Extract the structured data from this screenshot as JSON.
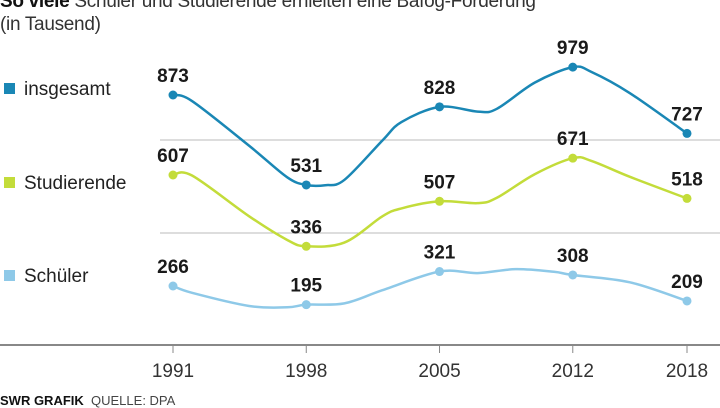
{
  "title_bold": "So viele",
  "title_rest": " Schüler und Studierende erhielten eine Bafög-Förderung",
  "subtitle": "(in Tausend)",
  "footer": {
    "brand": "SWR GRAFIK",
    "source": "QUELLE: DPA"
  },
  "chart_data": {
    "type": "line",
    "title": "So viele Schüler und Studierende erhielten eine Bafög-Förderung",
    "subtitle": "(in Tausend)",
    "x_ticks": [
      1991,
      1998,
      2005,
      2012,
      2018
    ],
    "legend_placement": "left",
    "grid": "horizontal separators",
    "series": [
      {
        "name": "insgesamt",
        "color": "#1a87b5",
        "labeled": {
          "1991": 873,
          "1998": 531,
          "2005": 828,
          "2012": 979,
          "2018": 727
        },
        "points": [
          [
            1991,
            873
          ],
          [
            1992,
            850
          ],
          [
            1995,
            680
          ],
          [
            1997,
            560
          ],
          [
            1998,
            531
          ],
          [
            1999,
            530
          ],
          [
            2000,
            550
          ],
          [
            2002,
            700
          ],
          [
            2003,
            770
          ],
          [
            2005,
            828
          ],
          [
            2007,
            810
          ],
          [
            2008,
            820
          ],
          [
            2010,
            920
          ],
          [
            2012,
            979
          ],
          [
            2013,
            960
          ],
          [
            2015,
            880
          ],
          [
            2018,
            727
          ]
        ]
      },
      {
        "name": "Studierende",
        "color": "#c3dc3a",
        "labeled": {
          "1991": 607,
          "1998": 336,
          "2005": 507,
          "2012": 671,
          "2018": 518
        },
        "points": [
          [
            1991,
            607
          ],
          [
            1992,
            605
          ],
          [
            1995,
            450
          ],
          [
            1997,
            360
          ],
          [
            1998,
            336
          ],
          [
            2000,
            350
          ],
          [
            2002,
            450
          ],
          [
            2003,
            480
          ],
          [
            2005,
            507
          ],
          [
            2007,
            500
          ],
          [
            2008,
            520
          ],
          [
            2010,
            610
          ],
          [
            2012,
            671
          ],
          [
            2013,
            660
          ],
          [
            2015,
            600
          ],
          [
            2018,
            518
          ]
        ]
      },
      {
        "name": "Schüler",
        "color": "#8ec9e8",
        "labeled": {
          "1991": 266,
          "1998": 195,
          "2005": 321,
          "2012": 308,
          "2018": 209
        },
        "points": [
          [
            1991,
            266
          ],
          [
            1992,
            240
          ],
          [
            1995,
            190
          ],
          [
            1997,
            185
          ],
          [
            1998,
            195
          ],
          [
            2000,
            200
          ],
          [
            2002,
            250
          ],
          [
            2005,
            321
          ],
          [
            2007,
            315
          ],
          [
            2009,
            330
          ],
          [
            2011,
            320
          ],
          [
            2012,
            308
          ],
          [
            2015,
            280
          ],
          [
            2018,
            209
          ]
        ]
      }
    ]
  }
}
